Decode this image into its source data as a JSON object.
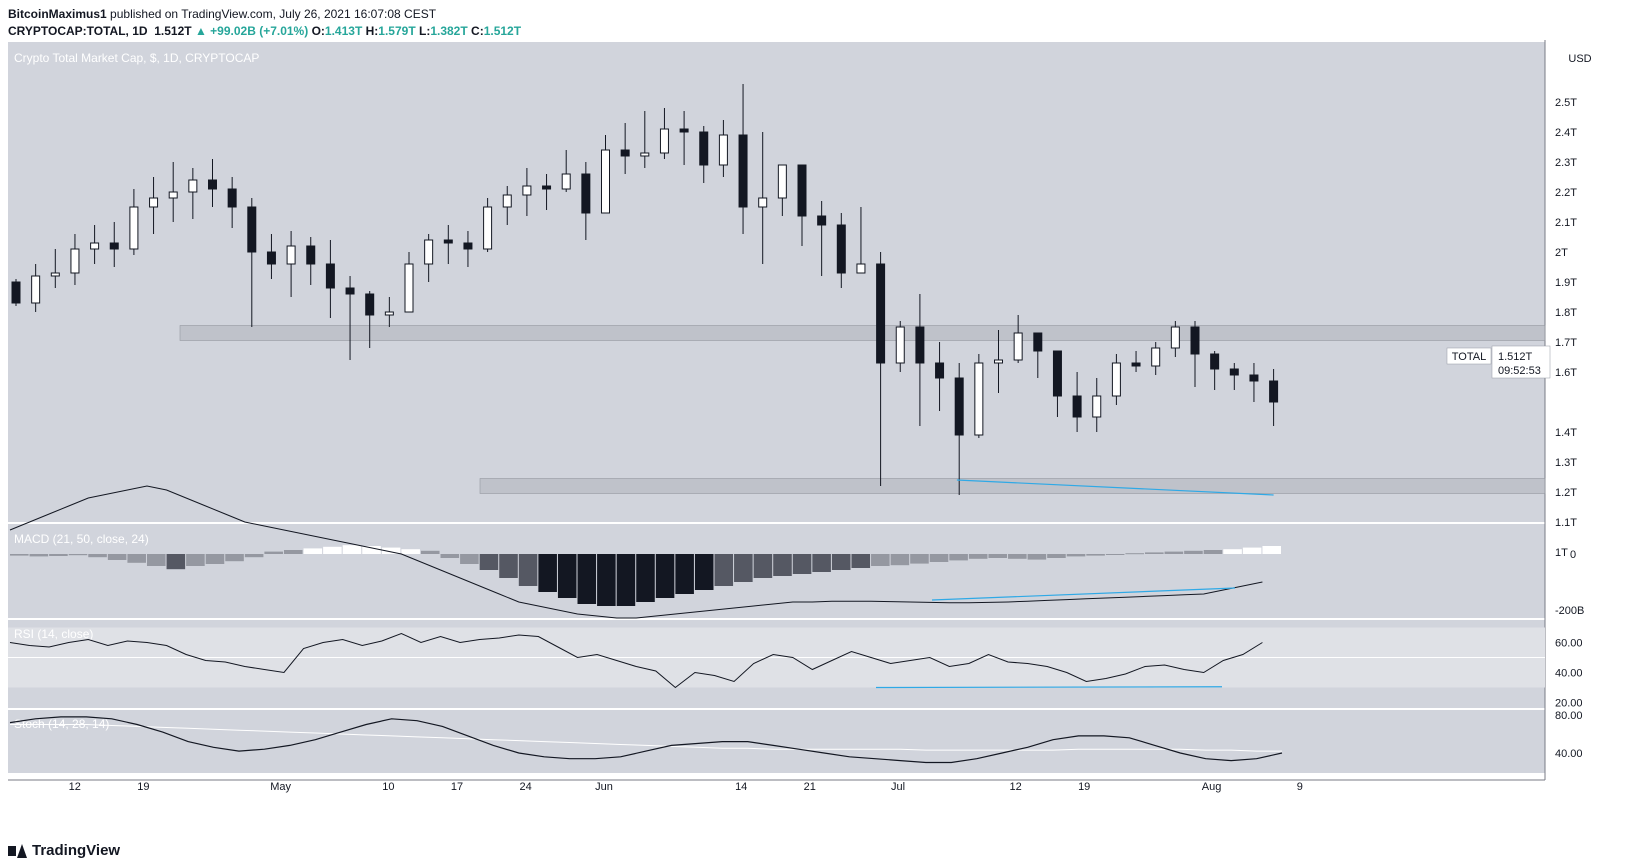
{
  "header": {
    "author": "BitcoinMaximus1",
    "published_text": "published on TradingView.com, July 26, 2021 16:07:08 CEST",
    "symbol": "CRYPTOCAP:TOTAL, 1D",
    "last": "1.512T",
    "change": "▲ +99.02B (+7.01%)",
    "o_label": "O:",
    "o_value": "1.413T",
    "h_label": "H:",
    "h_value": "1.579T",
    "l_label": "L:",
    "l_value": "1.382T",
    "c_label": "C:",
    "c_value": "1.512T"
  },
  "branding": {
    "logo_text": "TradingView"
  },
  "colors": {
    "pane_bg": "#d1d4dc",
    "rsi_band": "#dfe1e6",
    "axis_bg": "#ffffff",
    "candle_up": "#ffffff",
    "candle_down": "#131722",
    "trendline": "#2fa9e6",
    "zone": "#b2b5be",
    "hist_light": "#ffffff",
    "hist_grey": "#9598a1",
    "hist_dark": "#555863",
    "hist_black": "#131722"
  },
  "chart_data": {
    "type": "candlestick",
    "main": {
      "title": "Crypto Total Market Cap, $, 1D, CRYPTOCAP",
      "unit": "USD",
      "yticks": [
        "2.5T",
        "2.4T",
        "2.3T",
        "2.2T",
        "2.1T",
        "2T",
        "1.9T",
        "1.8T",
        "1.7T",
        "1.6T",
        "1.4T",
        "1.3T",
        "1.2T",
        "1.1T",
        "1T"
      ],
      "ytick_values": [
        2.5,
        2.4,
        2.3,
        2.2,
        2.1,
        2.0,
        1.9,
        1.8,
        1.7,
        1.6,
        1.4,
        1.3,
        1.2,
        1.1,
        1.0
      ],
      "last_label": "TOTAL",
      "last_value": "1.512T",
      "countdown": "09:52:53",
      "support_zone": [
        1.195,
        1.245
      ],
      "resistance_zone": [
        1.705,
        1.755
      ],
      "trendline_price": [
        [
          26,
          1.24
        ],
        [
          64,
          1.19
        ]
      ],
      "candles": [
        [
          0,
          1.9,
          1.83,
          1.91,
          1.82
        ],
        [
          1,
          1.83,
          1.92,
          1.96,
          1.8
        ],
        [
          2,
          1.92,
          1.93,
          2.01,
          1.88
        ],
        [
          3,
          1.93,
          2.01,
          2.06,
          1.89
        ],
        [
          4,
          2.01,
          2.03,
          2.09,
          1.96
        ],
        [
          5,
          2.03,
          2.01,
          2.1,
          1.95
        ],
        [
          6,
          2.01,
          2.15,
          2.21,
          1.99
        ],
        [
          7,
          2.15,
          2.18,
          2.25,
          2.06
        ],
        [
          8,
          2.18,
          2.2,
          2.3,
          2.1
        ],
        [
          9,
          2.2,
          2.24,
          2.28,
          2.11
        ],
        [
          10,
          2.24,
          2.21,
          2.31,
          2.15
        ],
        [
          11,
          2.21,
          2.15,
          2.25,
          2.08
        ],
        [
          12,
          2.15,
          2.0,
          2.18,
          1.75
        ],
        [
          13,
          2.0,
          1.96,
          2.06,
          1.91
        ],
        [
          14,
          1.96,
          2.02,
          2.07,
          1.85
        ],
        [
          15,
          2.02,
          1.96,
          2.05,
          1.89
        ],
        [
          16,
          1.96,
          1.88,
          2.04,
          1.78
        ],
        [
          17,
          1.88,
          1.86,
          1.92,
          1.64
        ],
        [
          18,
          1.86,
          1.79,
          1.87,
          1.68
        ],
        [
          19,
          1.79,
          1.8,
          1.85,
          1.75
        ],
        [
          20,
          1.8,
          1.96,
          2.0,
          1.8
        ],
        [
          21,
          1.96,
          2.04,
          2.06,
          1.9
        ],
        [
          22,
          2.04,
          2.03,
          2.09,
          1.96
        ],
        [
          23,
          2.03,
          2.01,
          2.07,
          1.95
        ],
        [
          24,
          2.01,
          2.15,
          2.18,
          2.0
        ],
        [
          25,
          2.15,
          2.19,
          2.22,
          2.09
        ],
        [
          26,
          2.19,
          2.22,
          2.28,
          2.12
        ],
        [
          27,
          2.22,
          2.21,
          2.26,
          2.14
        ],
        [
          28,
          2.21,
          2.26,
          2.34,
          2.2
        ],
        [
          29,
          2.26,
          2.13,
          2.3,
          2.04
        ],
        [
          30,
          2.13,
          2.34,
          2.39,
          2.14
        ],
        [
          31,
          2.34,
          2.32,
          2.43,
          2.26
        ],
        [
          32,
          2.32,
          2.33,
          2.47,
          2.28
        ],
        [
          33,
          2.33,
          2.41,
          2.48,
          2.31
        ],
        [
          34,
          2.41,
          2.4,
          2.47,
          2.29
        ],
        [
          35,
          2.4,
          2.29,
          2.42,
          2.23
        ],
        [
          36,
          2.29,
          2.39,
          2.44,
          2.25
        ],
        [
          37,
          2.39,
          2.15,
          2.56,
          2.06
        ],
        [
          38,
          2.15,
          2.18,
          2.4,
          1.96
        ],
        [
          39,
          2.18,
          2.29,
          2.29,
          2.12
        ],
        [
          40,
          2.29,
          2.12,
          2.25,
          2.02
        ],
        [
          41,
          2.12,
          2.09,
          2.17,
          1.92
        ],
        [
          42,
          2.09,
          1.93,
          2.13,
          1.88
        ],
        [
          43,
          1.93,
          1.96,
          2.15,
          1.95
        ],
        [
          44,
          1.96,
          1.63,
          2.0,
          1.22
        ],
        [
          45,
          1.63,
          1.75,
          1.77,
          1.6
        ],
        [
          46,
          1.75,
          1.63,
          1.86,
          1.42
        ],
        [
          47,
          1.63,
          1.58,
          1.7,
          1.47
        ],
        [
          48,
          1.58,
          1.39,
          1.63,
          1.19
        ],
        [
          49,
          1.39,
          1.63,
          1.66,
          1.38
        ],
        [
          50,
          1.63,
          1.64,
          1.74,
          1.53
        ],
        [
          51,
          1.64,
          1.73,
          1.79,
          1.63
        ],
        [
          52,
          1.73,
          1.67,
          1.72,
          1.58
        ],
        [
          53,
          1.67,
          1.52,
          1.67,
          1.45
        ],
        [
          54,
          1.52,
          1.45,
          1.6,
          1.4
        ],
        [
          55,
          1.45,
          1.52,
          1.58,
          1.4
        ],
        [
          56,
          1.52,
          1.63,
          1.66,
          1.49
        ],
        [
          57,
          1.63,
          1.62,
          1.67,
          1.6
        ],
        [
          58,
          1.62,
          1.68,
          1.7,
          1.59
        ],
        [
          59,
          1.68,
          1.75,
          1.77,
          1.65
        ],
        [
          60,
          1.75,
          1.66,
          1.77,
          1.55
        ],
        [
          61,
          1.66,
          1.61,
          1.67,
          1.54
        ],
        [
          62,
          1.61,
          1.59,
          1.63,
          1.54
        ],
        [
          63,
          1.59,
          1.57,
          1.63,
          1.5
        ],
        [
          64,
          1.57,
          1.5,
          1.61,
          1.42
        ]
      ]
    },
    "macd": {
      "label": "MACD (21, 50, close, 24)",
      "yticks": [
        "0",
        "-200B"
      ],
      "histogram": [
        -4,
        -6,
        -5,
        -3,
        -8,
        -15,
        -22,
        -30,
        -38,
        -30,
        -25,
        -18,
        -8,
        6,
        10,
        14,
        18,
        22,
        20,
        16,
        12,
        8,
        -10,
        -25,
        -40,
        -60,
        -80,
        -95,
        -110,
        -125,
        -130,
        -130,
        -120,
        -110,
        -100,
        -90,
        -80,
        -70,
        -60,
        -55,
        -50,
        -45,
        -40,
        -35,
        -30,
        -28,
        -24,
        -20,
        -16,
        -12,
        -10,
        -12,
        -14,
        -10,
        -6,
        -4,
        -2,
        2,
        4,
        6,
        8,
        10,
        12,
        16,
        20
      ],
      "signal": [
        60,
        80,
        100,
        120,
        140,
        150,
        160,
        170,
        160,
        140,
        120,
        100,
        80,
        70,
        60,
        50,
        40,
        30,
        20,
        10,
        0,
        -20,
        -40,
        -60,
        -80,
        -100,
        -120,
        -130,
        -140,
        -150,
        -155,
        -160,
        -160,
        -155,
        -150,
        -145,
        -140,
        -135,
        -130,
        -125,
        -120,
        -120,
        -118,
        -118,
        -118,
        -119,
        -120,
        -121,
        -122,
        -122,
        -121,
        -120,
        -118,
        -116,
        -114,
        -112,
        -110,
        -108,
        -106,
        -104,
        -102,
        -100,
        -90,
        -80,
        -70
      ]
    },
    "rsi": {
      "label": "RSI (14, close)",
      "yticks": [
        "60.00",
        "40.00",
        "20.00"
      ],
      "ytick_values": [
        60,
        40,
        20
      ],
      "band": [
        30,
        70
      ],
      "values": [
        60,
        58,
        57,
        60,
        62,
        58,
        61,
        60,
        58,
        52,
        48,
        47,
        44,
        42,
        40,
        56,
        60,
        62,
        58,
        61,
        66,
        60,
        64,
        60,
        62,
        63,
        65,
        64,
        57,
        50,
        52,
        48,
        44,
        41,
        30,
        40,
        38,
        34,
        46,
        52,
        50,
        42,
        48,
        54,
        50,
        46,
        48,
        50,
        44,
        46,
        52,
        47,
        46,
        44,
        40,
        34,
        36,
        39,
        44,
        45,
        42,
        40,
        48,
        52,
        60
      ]
    },
    "stoch": {
      "label": "Stoch (14, 28, 14)",
      "yticks": [
        "80.00",
        "40.00"
      ],
      "ytick_values": [
        80,
        40
      ],
      "k": [
        72,
        76,
        78,
        78,
        76,
        70,
        62,
        52,
        46,
        42,
        44,
        48,
        54,
        62,
        70,
        76,
        74,
        68,
        58,
        48,
        40,
        36,
        34,
        34,
        36,
        42,
        48,
        50,
        52,
        52,
        48,
        44,
        40,
        36,
        34,
        32,
        30,
        30,
        34,
        40,
        46,
        54,
        58,
        58,
        56,
        48,
        40,
        34,
        32,
        34,
        40
      ],
      "d": [
        70,
        70,
        70,
        70,
        69,
        68,
        67,
        66,
        65,
        64,
        63,
        62,
        61,
        60,
        59,
        58,
        57,
        56,
        55,
        54,
        53,
        52,
        51,
        50,
        49,
        48,
        47,
        46,
        45,
        45,
        44,
        44,
        44,
        44,
        44,
        44,
        43,
        43,
        43,
        43,
        43,
        43,
        44,
        44,
        44,
        44,
        44,
        43,
        43,
        42,
        42
      ]
    },
    "xticks": [
      "12",
      "19",
      "May",
      "10",
      "17",
      "24",
      "Jun",
      "14",
      "21",
      "Jul",
      "12",
      "19",
      "Aug",
      "9"
    ],
    "xtick_index": [
      6,
      13,
      27,
      38,
      45,
      52,
      60,
      74,
      81,
      90,
      102,
      109,
      122,
      131
    ]
  }
}
